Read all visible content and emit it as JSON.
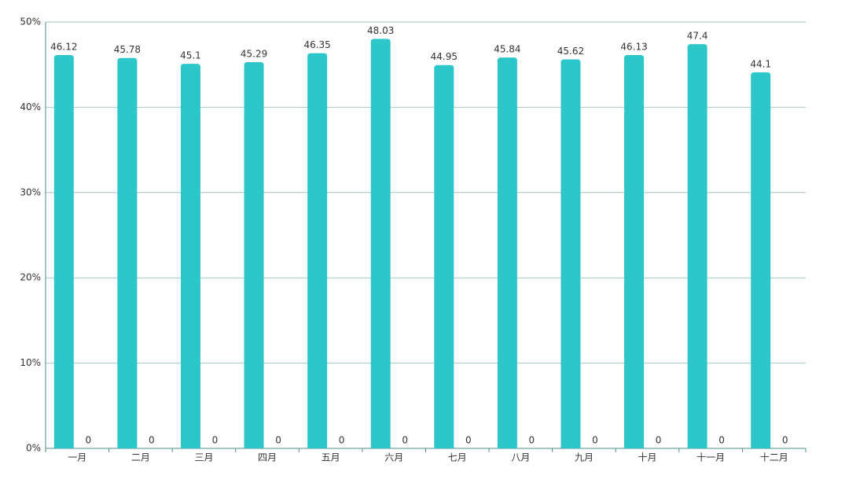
{
  "chart_data": {
    "type": "bar",
    "categories": [
      "一月",
      "二月",
      "三月",
      "四月",
      "五月",
      "六月",
      "七月",
      "八月",
      "九月",
      "十月",
      "十一月",
      "十二月"
    ],
    "series": [
      {
        "color": "#2ec7c9",
        "values": [
          46.12,
          45.78,
          45.1,
          45.29,
          46.35,
          48.03,
          44.95,
          45.84,
          45.62,
          46.13,
          47.4,
          44.1
        ]
      },
      {
        "color": "#b6a2de",
        "values": [
          0,
          0,
          0,
          0,
          0,
          0,
          0,
          0,
          0,
          0,
          0,
          0
        ]
      }
    ],
    "ylim": [
      0,
      50
    ],
    "yticks": [
      {
        "value": 0,
        "label": "0%"
      },
      {
        "value": 10,
        "label": "10%"
      },
      {
        "value": 20,
        "label": "20%"
      },
      {
        "value": 30,
        "label": "30%"
      },
      {
        "value": 40,
        "label": "40%"
      },
      {
        "value": 50,
        "label": "50%"
      }
    ],
    "grid": true
  }
}
